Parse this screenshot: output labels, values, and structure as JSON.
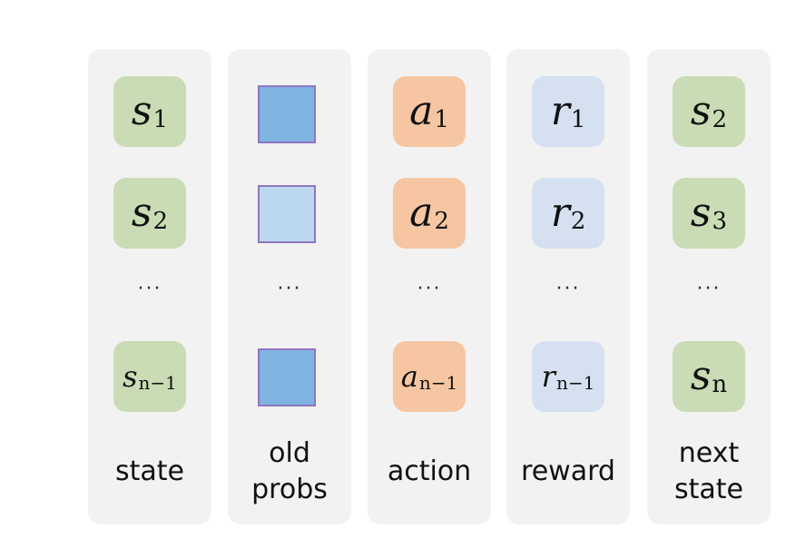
{
  "columns": [
    {
      "id": "state",
      "label": "state",
      "cells": [
        {
          "base": "s",
          "sub": "1"
        },
        {
          "base": "s",
          "sub": "2"
        },
        {
          "base": "s",
          "sub": "n−1"
        }
      ],
      "ellipsis": "···"
    },
    {
      "id": "old-probs",
      "label": "old\nprobs",
      "boxes": [
        {
          "fill": "#7fb3e2"
        },
        {
          "fill": "#bcd8ee"
        },
        {
          "fill": "#7fb3e2"
        }
      ],
      "border_color": "#8e76c0",
      "ellipsis": "···"
    },
    {
      "id": "action",
      "label": "action",
      "cells": [
        {
          "base": "a",
          "sub": "1"
        },
        {
          "base": "a",
          "sub": "2"
        },
        {
          "base": "a",
          "sub": "n−1"
        }
      ],
      "ellipsis": "···"
    },
    {
      "id": "reward",
      "label": "reward",
      "cells": [
        {
          "base": "r",
          "sub": "1"
        },
        {
          "base": "r",
          "sub": "2"
        },
        {
          "base": "r",
          "sub": "n−1"
        }
      ],
      "ellipsis": "···"
    },
    {
      "id": "next-state",
      "label": "next\nstate",
      "cells": [
        {
          "base": "s",
          "sub": "2"
        },
        {
          "base": "s",
          "sub": "3"
        },
        {
          "base": "s",
          "sub": "n"
        }
      ],
      "ellipsis": "···"
    }
  ],
  "colors": {
    "column_bg": "#f2f2f2",
    "state_cell": "#c9dcb5",
    "action_cell": "#f6c6a2",
    "reward_cell": "#d5e1f0"
  }
}
